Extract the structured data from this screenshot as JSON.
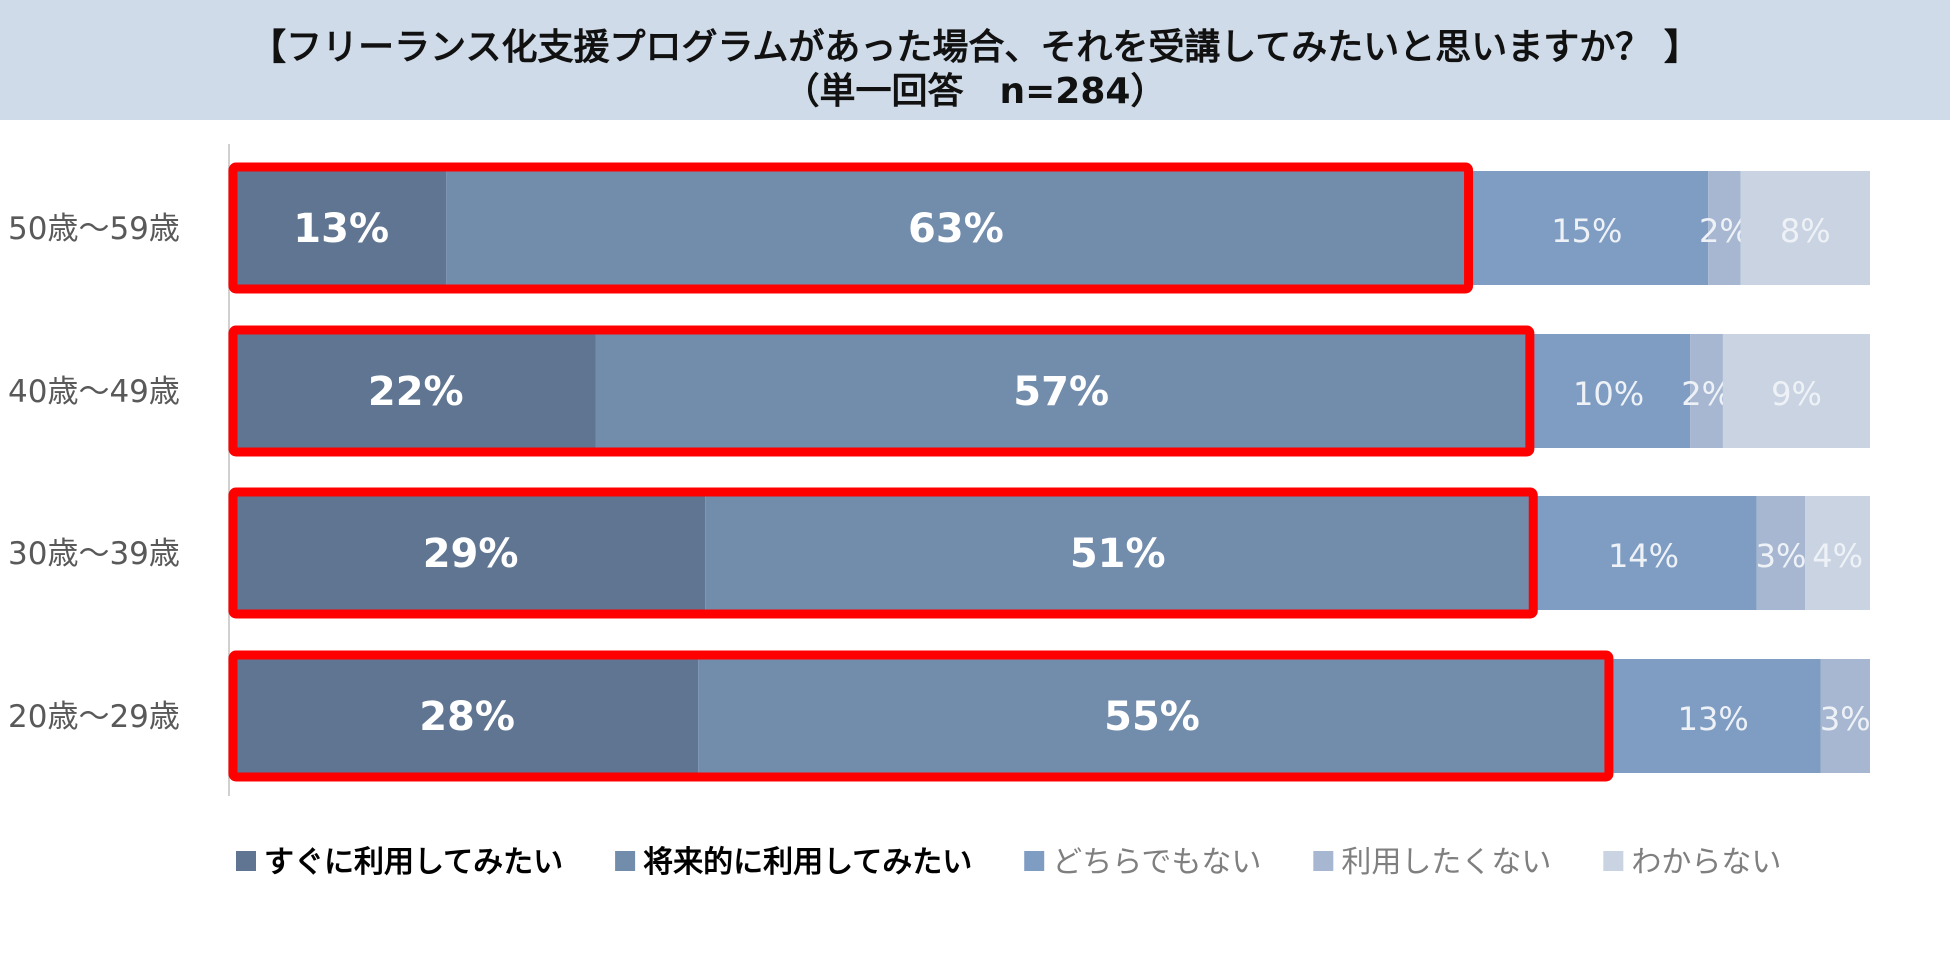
{
  "header": {
    "title": "【フリーランス化支援プログラムがあった場合、それを受講してみたいと思いますか？ 】",
    "subtitle": "（単一回答　n=284）"
  },
  "chart_data": {
    "type": "bar",
    "orientation": "horizontal",
    "stacked": true,
    "percent": true,
    "categories": [
      "50歳～59歳",
      "40歳～49歳",
      "30歳～39歳",
      "20歳～29歳"
    ],
    "series": [
      {
        "name": "すぐに利用してみたい",
        "values": [
          13,
          22,
          29,
          28
        ],
        "color": "#5f7591",
        "label_color": "#ffffff",
        "bold": true
      },
      {
        "name": "将来的に利用してみたい",
        "values": [
          63,
          57,
          51,
          55
        ],
        "color": "#728cac",
        "label_color": "#ffffff",
        "bold": true
      },
      {
        "name": "どちらでもない",
        "values": [
          15,
          10,
          14,
          13
        ],
        "color": "#7f9dc3",
        "label_color": "#eef2f7",
        "bold": false
      },
      {
        "name": "利用したくない",
        "values": [
          2,
          2,
          3,
          3
        ],
        "color": "#a7b7d1",
        "label_color": "#eef2f7",
        "bold": false
      },
      {
        "name": "わからない",
        "values": [
          8,
          9,
          4,
          0
        ],
        "color": "#c9d3e2",
        "label_color": "#eef2f7",
        "bold": false
      }
    ],
    "highlight": {
      "series": [
        "すぐに利用してみたい",
        "将来的に利用してみたい"
      ],
      "color": "#ff0000"
    },
    "legend": {
      "position": "bottom"
    }
  }
}
